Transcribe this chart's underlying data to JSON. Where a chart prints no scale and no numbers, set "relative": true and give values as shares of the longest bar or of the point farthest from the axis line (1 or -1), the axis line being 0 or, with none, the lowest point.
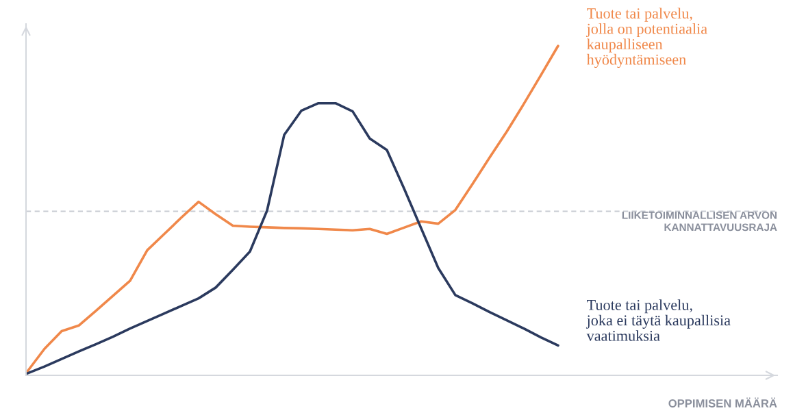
{
  "chart_data": {
    "type": "line",
    "relative": true,
    "annotations": [
      "OPPIMISEN MÄÄRÄ"
    ],
    "categories": [
      null,
      null,
      null,
      null,
      null,
      null,
      null,
      null,
      null,
      null,
      null,
      null,
      null,
      null,
      null,
      null,
      null,
      null,
      null,
      null,
      null,
      null,
      null,
      null,
      null,
      null,
      null,
      null,
      null,
      null,
      null,
      null
    ],
    "series": [
      {
        "name": "Tuote tai palvelu,\njolla on potentiaalia\nkaupalliseen\nhyödyntämiseen",
        "color": "#f0884a",
        "values": [
          0.006,
          0.075,
          0.129,
          0.146,
          0.191,
          0.237,
          0.283,
          0.376,
          0.426,
          0.476,
          0.524,
          0.486,
          0.451,
          0.448,
          0.446,
          0.444,
          0.443,
          0.441,
          0.439,
          0.437,
          0.441,
          0.426,
          0.445,
          0.464,
          0.457,
          0.499,
          0.578,
          0.659,
          0.738,
          0.823,
          0.911,
          1.0
        ]
      },
      {
        "name": "Tuote tai palvelu,\njoka ei täytä kaupallisia\nvaatimuksia",
        "color": "#2b3a5e",
        "values": [
          0.0,
          0.021,
          0.044,
          0.067,
          0.089,
          0.112,
          0.137,
          0.16,
          0.183,
          0.206,
          0.229,
          0.262,
          0.316,
          0.372,
          0.497,
          0.728,
          0.802,
          0.825,
          0.825,
          0.8,
          0.717,
          0.682,
          0.565,
          0.443,
          0.322,
          0.239,
          0.214,
          0.187,
          0.162,
          0.137,
          0.11,
          0.085
        ]
      }
    ],
    "ref_lines": [
      {
        "axis": "y",
        "value": 0.495,
        "label": "LIIKETOIMINNALLISEN ARVON\nKANNATTAVUUSRAJA",
        "color": "#c8cbd2",
        "line_style": "dashed"
      }
    ],
    "legend": false,
    "marker": "none",
    "line_style": "solid"
  }
}
